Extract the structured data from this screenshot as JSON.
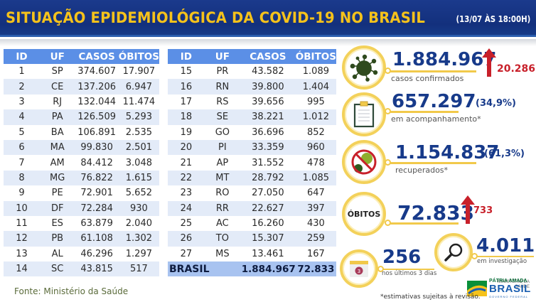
{
  "header": {
    "title": "SITUAÇÃO EPIDEMIOLÓGICA DA COVID-19 NO BRASIL",
    "subtitle": "(13/07 ÀS 18:00H)"
  },
  "table": {
    "columns": [
      "ID",
      "UF",
      "CASOS",
      "ÓBITOS"
    ],
    "rows_left": [
      {
        "id": "1",
        "uf": "SP",
        "casos": "374.607",
        "obitos": "17.907"
      },
      {
        "id": "2",
        "uf": "CE",
        "casos": "137.206",
        "obitos": "6.947"
      },
      {
        "id": "3",
        "uf": "RJ",
        "casos": "132.044",
        "obitos": "11.474"
      },
      {
        "id": "4",
        "uf": "PA",
        "casos": "126.509",
        "obitos": "5.293"
      },
      {
        "id": "5",
        "uf": "BA",
        "casos": "106.891",
        "obitos": "2.535"
      },
      {
        "id": "6",
        "uf": "MA",
        "casos": "99.830",
        "obitos": "2.501"
      },
      {
        "id": "7",
        "uf": "AM",
        "casos": "84.412",
        "obitos": "3.048"
      },
      {
        "id": "8",
        "uf": "MG",
        "casos": "76.822",
        "obitos": "1.615"
      },
      {
        "id": "9",
        "uf": "PE",
        "casos": "72.901",
        "obitos": "5.652"
      },
      {
        "id": "10",
        "uf": "DF",
        "casos": "72.284",
        "obitos": "930"
      },
      {
        "id": "11",
        "uf": "ES",
        "casos": "63.879",
        "obitos": "2.040"
      },
      {
        "id": "12",
        "uf": "PB",
        "casos": "61.108",
        "obitos": "1.302"
      },
      {
        "id": "13",
        "uf": "AL",
        "casos": "46.296",
        "obitos": "1.297"
      },
      {
        "id": "14",
        "uf": "SC",
        "casos": "43.815",
        "obitos": "517"
      }
    ],
    "rows_right": [
      {
        "id": "15",
        "uf": "PR",
        "casos": "43.582",
        "obitos": "1.089"
      },
      {
        "id": "16",
        "uf": "RN",
        "casos": "39.800",
        "obitos": "1.404"
      },
      {
        "id": "17",
        "uf": "RS",
        "casos": "39.656",
        "obitos": "995"
      },
      {
        "id": "18",
        "uf": "SE",
        "casos": "38.221",
        "obitos": "1.012"
      },
      {
        "id": "19",
        "uf": "GO",
        "casos": "36.696",
        "obitos": "852"
      },
      {
        "id": "20",
        "uf": "PI",
        "casos": "33.359",
        "obitos": "960"
      },
      {
        "id": "21",
        "uf": "AP",
        "casos": "31.552",
        "obitos": "478"
      },
      {
        "id": "22",
        "uf": "MT",
        "casos": "28.792",
        "obitos": "1.085"
      },
      {
        "id": "23",
        "uf": "RO",
        "casos": "27.050",
        "obitos": "647"
      },
      {
        "id": "24",
        "uf": "RR",
        "casos": "22.627",
        "obitos": "397"
      },
      {
        "id": "25",
        "uf": "AC",
        "casos": "16.260",
        "obitos": "430"
      },
      {
        "id": "26",
        "uf": "TO",
        "casos": "15.307",
        "obitos": "259"
      },
      {
        "id": "27",
        "uf": "MS",
        "casos": "13.461",
        "obitos": "167"
      }
    ],
    "total": {
      "label": "BRASIL",
      "casos": "1.884.967",
      "obitos": "72.833"
    }
  },
  "source": "Fonte: Ministério da Saúde",
  "stats": {
    "confirmed": {
      "value": "1.884.967",
      "label": "casos confirmados",
      "increase": "20.286",
      "icon": "virus-icon"
    },
    "monitoring": {
      "value": "657.297",
      "pct": "(34,9%)",
      "label": "em acompanhamento*",
      "icon": "clipboard-icon"
    },
    "recovered": {
      "value": "1.154.837",
      "pct": "(61,3%)",
      "label": "recuperados*",
      "icon": "no-virus-icon"
    },
    "deaths": {
      "badge": "ÓBITOS",
      "value": "72.833",
      "increase": "733"
    },
    "investigation": {
      "value": "4.011",
      "label": "em investigação",
      "icon": "magnifier-icon"
    },
    "last3days": {
      "value": "256",
      "label": "nos últimos 3 dias",
      "icon_number": "3",
      "icon": "calendar-icon"
    }
  },
  "footnote": "*estimativas sujeitas à revisão.",
  "logos": {
    "ministry_line1": "MINISTÉRIO DA",
    "ministry_line2": "SAÚDE",
    "brand_line1": "PÁTRIA AMADA",
    "brand_line2": "BRASIL",
    "brand_line3": "GOVERNO FEDERAL"
  },
  "colors": {
    "header_bg": "#13307d",
    "title_yellow": "#f5c21b",
    "table_header": "#5b8fe6",
    "row_alt": "#e3ebf8",
    "total_row": "#a8c3f0",
    "stat_blue": "#173a8a",
    "increase_red": "#c8202a",
    "ring_yellow": "#f3d15a"
  }
}
